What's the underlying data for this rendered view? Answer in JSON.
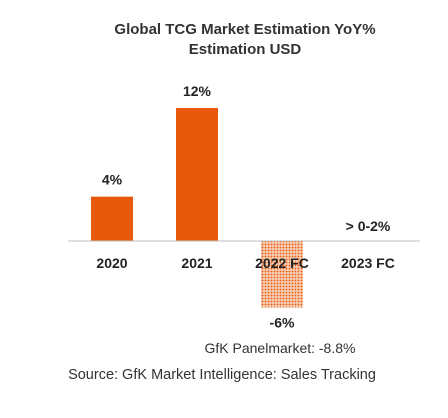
{
  "chart_data": {
    "type": "bar",
    "title": "Global TCG Market Estimation YoY%",
    "subtitle": "Estimation USD",
    "categories": [
      "2020",
      "2021",
      "2022 FC",
      "2023 FC"
    ],
    "values": [
      4,
      12,
      -6,
      null
    ],
    "data_labels": [
      "4%",
      "12%",
      "-6%",
      "> 0-2%"
    ],
    "styles": [
      "solid",
      "solid",
      "dotted",
      "none"
    ],
    "ylim": [
      -6,
      12
    ],
    "grid": false,
    "legend": "none",
    "colors": {
      "bar": "#E8590C",
      "forecast_dots": "#E8590C",
      "axis": "#BFBFBF"
    },
    "annotations": [
      "GfK Panelmarket: -8.8%"
    ],
    "source": "Source: GfK Market Intelligence: Sales Tracking"
  }
}
